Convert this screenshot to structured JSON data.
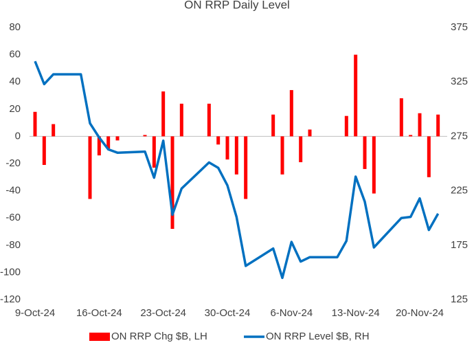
{
  "chart_data": {
    "type": "bar-line",
    "title": "ON RRP Daily Level",
    "x": [
      "2024-10-09",
      "2024-10-10",
      "2024-10-11",
      "2024-10-14",
      "2024-10-15",
      "2024-10-16",
      "2024-10-17",
      "2024-10-18",
      "2024-10-21",
      "2024-10-22",
      "2024-10-23",
      "2024-10-24",
      "2024-10-25",
      "2024-10-28",
      "2024-10-29",
      "2024-10-30",
      "2024-10-31",
      "2024-11-01",
      "2024-11-04",
      "2024-11-05",
      "2024-11-06",
      "2024-11-07",
      "2024-11-08",
      "2024-11-11",
      "2024-11-12",
      "2024-11-13",
      "2024-11-14",
      "2024-11-15",
      "2024-11-18",
      "2024-11-19",
      "2024-11-20",
      "2024-11-21",
      "2024-11-22"
    ],
    "series": [
      {
        "name": "ON RRP Chg $B, LH",
        "type": "bar",
        "axis": "y",
        "color": "#ff0000",
        "values": [
          18,
          -21,
          9,
          null,
          -46,
          -14,
          -9,
          -3,
          1,
          -23,
          33,
          -68,
          24,
          24,
          -6,
          -17,
          -28,
          -46,
          16,
          -28,
          34,
          -19,
          5,
          null,
          15,
          60,
          -24,
          -42,
          28,
          1,
          17,
          -30,
          16
        ]
      },
      {
        "name": "ON RRP Level $B, RH",
        "type": "line",
        "axis": "y2",
        "color": "#0070c0",
        "values": [
          344,
          323,
          332,
          332,
          287,
          274,
          263,
          260,
          261,
          237,
          271,
          203,
          227,
          251,
          246,
          230,
          201,
          156,
          172,
          145,
          178,
          160,
          164,
          164,
          179,
          238,
          215,
          173,
          200,
          201,
          218,
          189,
          204
        ]
      }
    ],
    "xlim": [
      "2024-10-09",
      "2024-11-23"
    ],
    "xticks": [
      {
        "value": "2024-10-09",
        "label": "9-Oct-24"
      },
      {
        "value": "2024-10-16",
        "label": "16-Oct-24"
      },
      {
        "value": "2024-10-23",
        "label": "23-Oct-24"
      },
      {
        "value": "2024-10-30",
        "label": "30-Oct-24"
      },
      {
        "value": "2024-11-06",
        "label": "6-Nov-24"
      },
      {
        "value": "2024-11-13",
        "label": "13-Nov-24"
      },
      {
        "value": "2024-11-20",
        "label": "20-Nov-24"
      }
    ],
    "ylim": [
      -120,
      80
    ],
    "yticks": [
      -120,
      -100,
      -80,
      -60,
      -40,
      -20,
      0,
      20,
      40,
      60,
      80
    ],
    "y2lim": [
      125,
      375
    ],
    "y2ticks": [
      125,
      175,
      225,
      275,
      325,
      375
    ],
    "legend": "bottom"
  }
}
